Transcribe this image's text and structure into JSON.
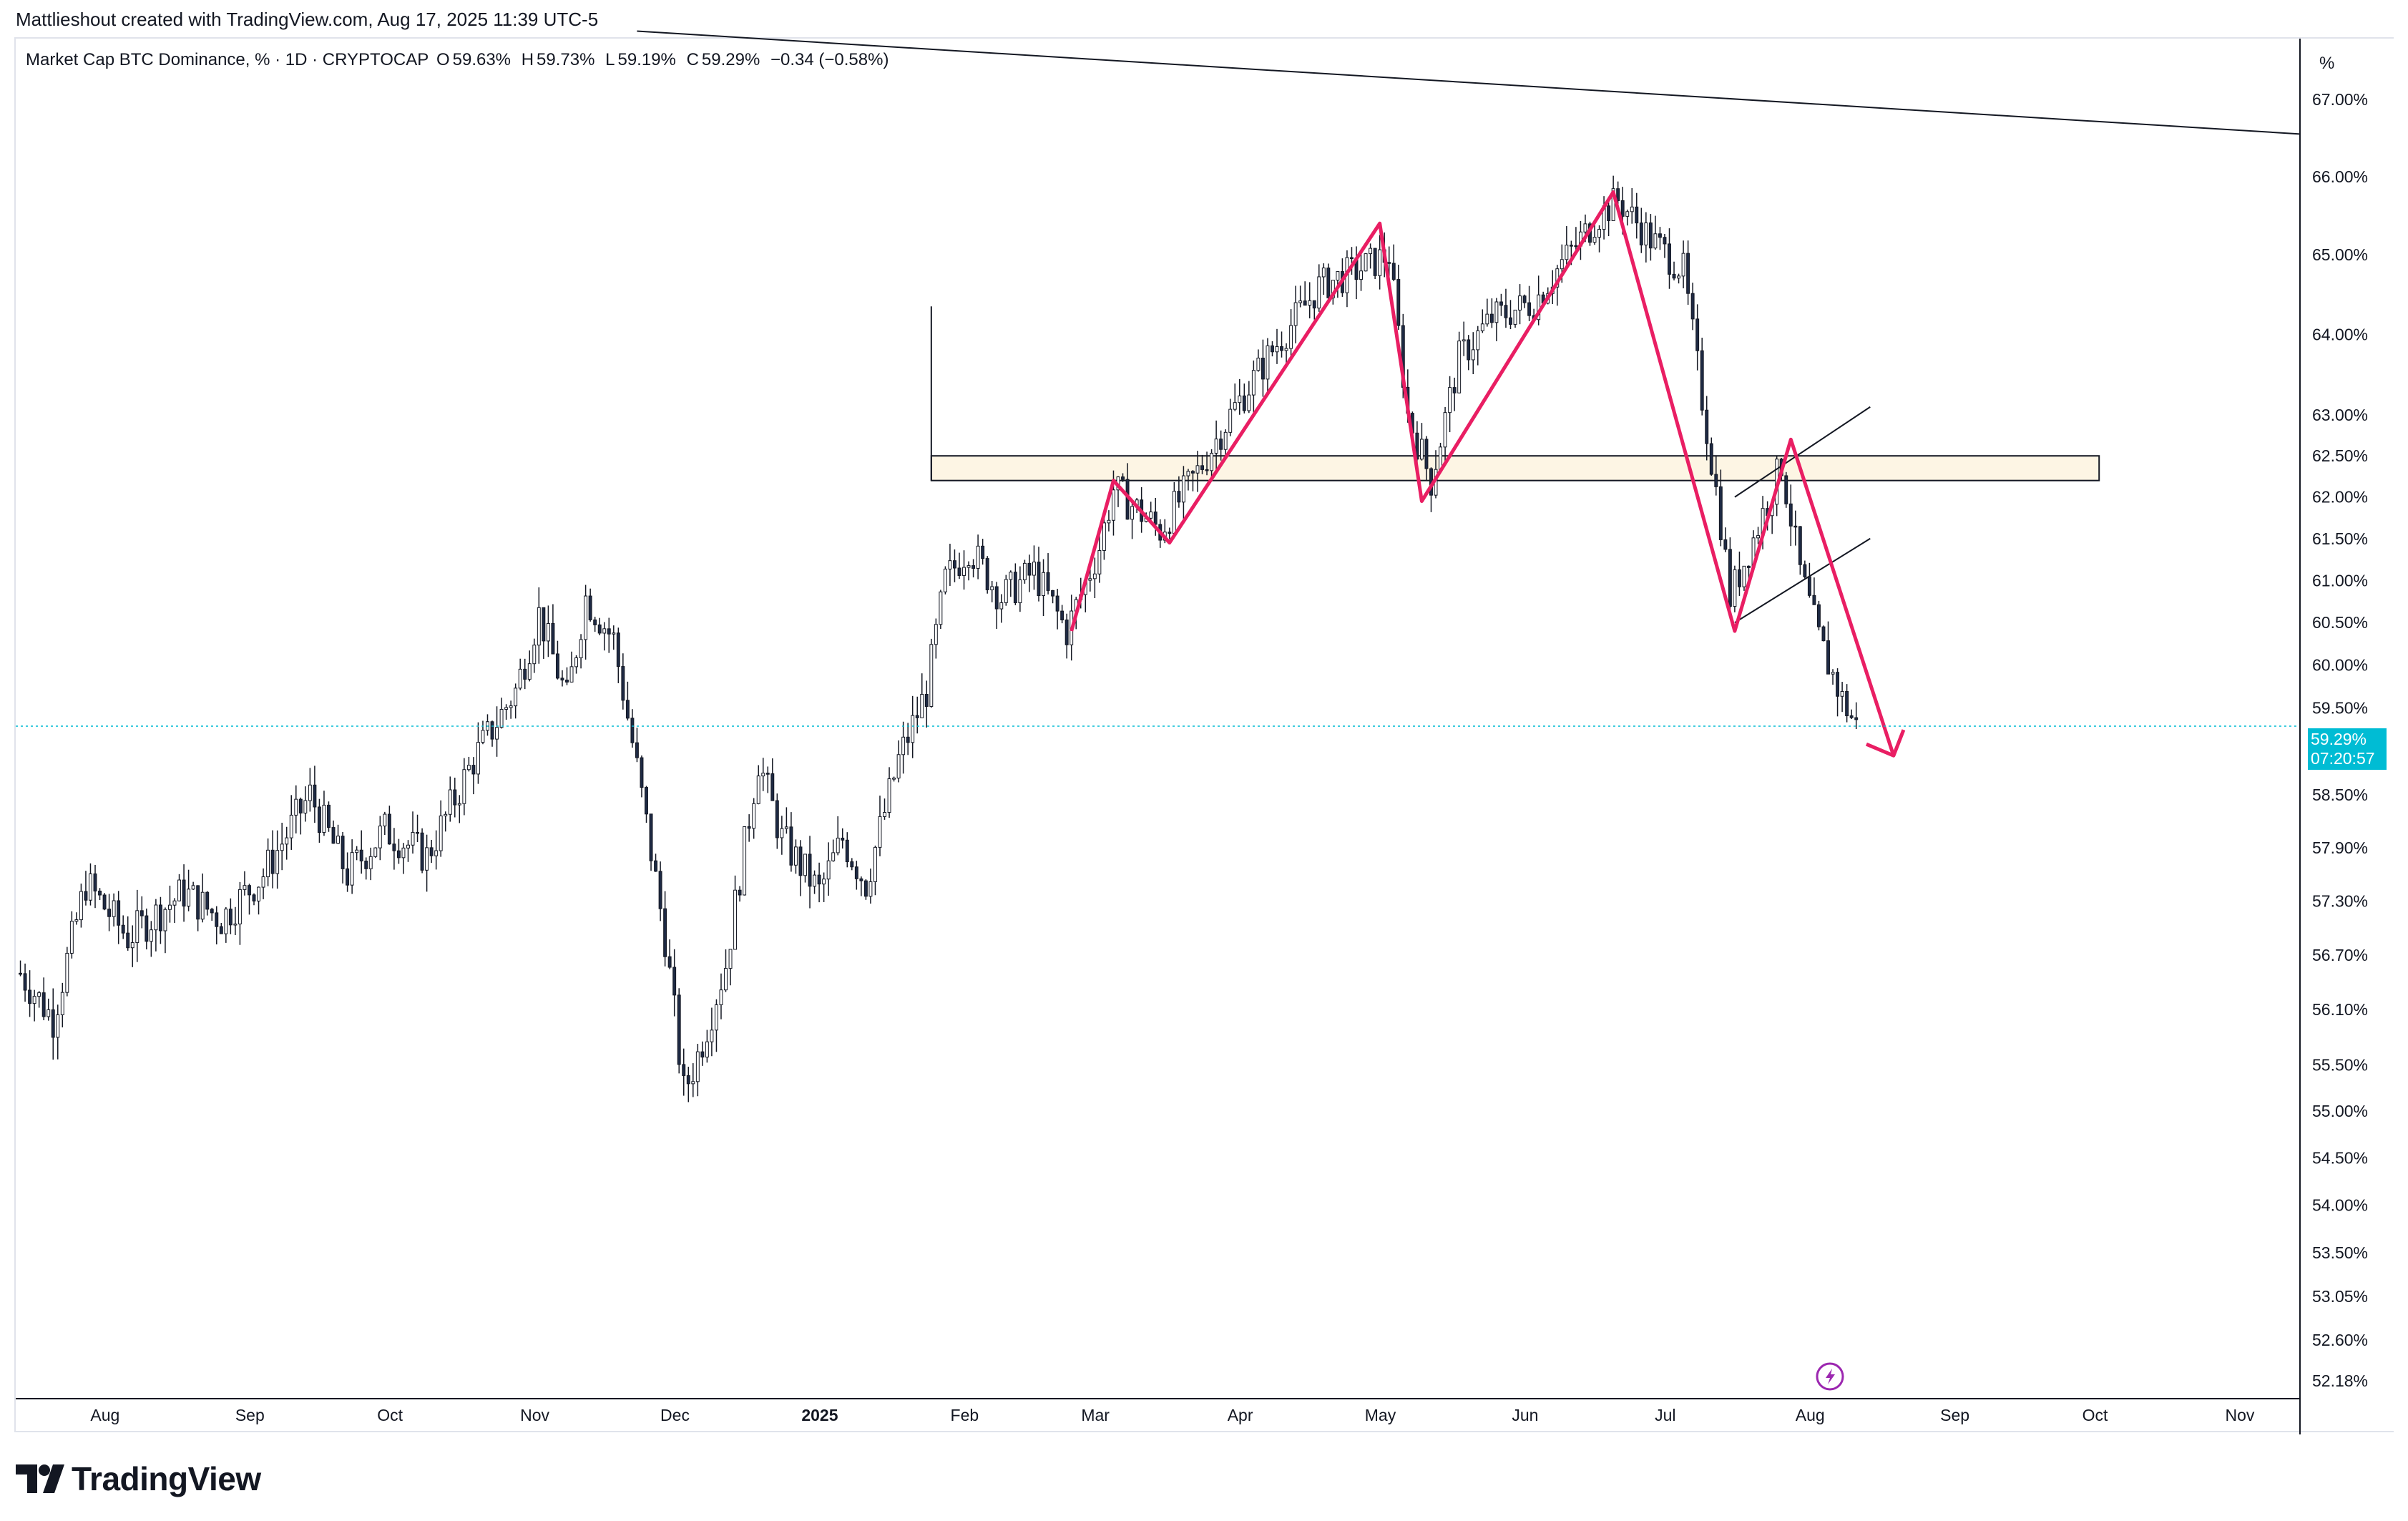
{
  "header": {
    "credit": "Mattlieshout created with TradingView.com, Aug 17, 2025 11:39 UTC-5"
  },
  "series_info": {
    "symbol": "Market Cap BTC Dominance, % · 1D · CRYPTOCAP",
    "open_label": "O",
    "open": "59.63%",
    "high_label": "H",
    "high": "59.73%",
    "low_label": "L",
    "low": "59.19%",
    "close_label": "C",
    "close": "59.29%",
    "change": "−0.34 (−0.58%)"
  },
  "price_axis": {
    "unit_label": "%",
    "current_price": "59.29%",
    "countdown": "07:20:57"
  },
  "brand": {
    "name": "TradingView"
  },
  "colors": {
    "candle_up": "#ffffff",
    "candle_down": "#1e2a44",
    "pattern": "#e91e63",
    "zone_fill": "#fdf5e4",
    "current_price": "#00bcd4",
    "spark_icon": "#9c27b0"
  },
  "chart_data": {
    "type": "candlestick",
    "title": "Market Cap BTC Dominance, % · 1D · CRYPTOCAP",
    "xlabel": "",
    "ylabel": "%",
    "x_ticks": [
      "Aug",
      "Sep",
      "Oct",
      "Nov",
      "Dec",
      "2025",
      "Feb",
      "Mar",
      "Apr",
      "May",
      "Jun",
      "Jul",
      "Aug",
      "Sep",
      "Oct",
      "Nov"
    ],
    "y_ticks": [
      "67.00%",
      "66.00%",
      "65.00%",
      "64.00%",
      "63.00%",
      "62.50%",
      "62.00%",
      "61.50%",
      "61.00%",
      "60.50%",
      "60.00%",
      "59.50%",
      "58.50%",
      "57.90%",
      "57.30%",
      "56.70%",
      "56.10%",
      "55.50%",
      "55.00%",
      "54.50%",
      "54.00%",
      "53.50%",
      "53.05%",
      "52.60%",
      "52.18%"
    ],
    "y_range": [
      52.0,
      67.8
    ],
    "y_scale": "log",
    "x_range": [
      "2024-07-19",
      "2025-11-20"
    ],
    "grid": false,
    "close_path": [
      [
        "2024-07-20",
        56.5
      ],
      [
        "2024-07-27",
        56.0
      ],
      [
        "2024-08-03",
        57.5
      ],
      [
        "2024-08-12",
        56.9
      ],
      [
        "2024-08-24",
        57.4
      ],
      [
        "2024-09-01",
        57.1
      ],
      [
        "2024-09-10",
        57.6
      ],
      [
        "2024-09-20",
        58.5
      ],
      [
        "2024-09-28",
        57.6
      ],
      [
        "2024-10-06",
        58.1
      ],
      [
        "2024-10-15",
        57.8
      ],
      [
        "2024-10-25",
        58.9
      ],
      [
        "2024-11-03",
        59.7
      ],
      [
        "2024-11-08",
        60.6
      ],
      [
        "2024-11-14",
        59.6
      ],
      [
        "2024-11-18",
        60.8
      ],
      [
        "2024-11-24",
        60.3
      ],
      [
        "2024-11-29",
        58.8
      ],
      [
        "2024-12-05",
        56.9
      ],
      [
        "2024-12-09",
        55.2
      ],
      [
        "2024-12-12",
        55.6
      ],
      [
        "2024-12-18",
        56.6
      ],
      [
        "2024-12-25",
        58.9
      ],
      [
        "2024-12-30",
        58.0
      ],
      [
        "2025-01-07",
        57.4
      ],
      [
        "2025-01-12",
        58.0
      ],
      [
        "2025-01-17",
        57.5
      ],
      [
        "2025-01-24",
        58.9
      ],
      [
        "2025-01-30",
        59.7
      ],
      [
        "2025-02-03",
        61.0
      ],
      [
        "2025-02-08",
        61.4
      ],
      [
        "2025-02-15",
        60.8
      ],
      [
        "2025-02-22",
        61.1
      ],
      [
        "2025-03-01",
        60.4
      ],
      [
        "2025-03-08",
        61.4
      ],
      [
        "2025-03-11",
        62.1
      ],
      [
        "2025-03-21",
        61.6
      ],
      [
        "2025-03-29",
        62.3
      ],
      [
        "2025-04-05",
        63.0
      ],
      [
        "2025-04-14",
        63.8
      ],
      [
        "2025-04-24",
        64.6
      ],
      [
        "2025-05-02",
        64.8
      ],
      [
        "2025-05-09",
        65.0
      ],
      [
        "2025-05-13",
        63.0
      ],
      [
        "2025-05-18",
        62.2
      ],
      [
        "2025-05-24",
        63.7
      ],
      [
        "2025-05-31",
        64.2
      ],
      [
        "2025-06-09",
        64.4
      ],
      [
        "2025-06-15",
        64.9
      ],
      [
        "2025-06-23",
        65.5
      ],
      [
        "2025-06-27",
        65.7
      ],
      [
        "2025-07-04",
        65.2
      ],
      [
        "2025-07-11",
        64.8
      ],
      [
        "2025-07-15",
        63.2
      ],
      [
        "2025-07-19",
        61.7
      ],
      [
        "2025-07-21",
        60.8
      ],
      [
        "2025-07-26",
        61.5
      ],
      [
        "2025-08-01",
        62.4
      ],
      [
        "2025-08-05",
        61.1
      ],
      [
        "2025-08-09",
        60.3
      ],
      [
        "2025-08-14",
        59.6
      ],
      [
        "2025-08-17",
        59.29
      ]
    ],
    "annotations": {
      "resistance_zone": {
        "from": "2025-01-31",
        "to": "2025-10-08",
        "low": 62.2,
        "high": 62.5
      },
      "vertical_marker": {
        "date": "2025-01-31",
        "high": 64.35,
        "low": 62.2
      },
      "long_trendline": {
        "from": [
          "2024-11-29",
          67.9
        ],
        "to": [
          "2025-11-20",
          66.55
        ]
      },
      "pattern_path": [
        [
          "2025-03-02",
          60.4
        ],
        [
          "2025-03-11",
          62.2
        ],
        [
          "2025-03-23",
          61.45
        ],
        [
          "2025-05-07",
          65.4
        ],
        [
          "2025-05-16",
          61.95
        ],
        [
          "2025-06-26",
          65.8
        ],
        [
          "2025-07-22",
          60.4
        ],
        [
          "2025-08-03",
          62.7
        ],
        [
          "2025-08-25",
          58.95
        ]
      ],
      "arrow_end": [
        "2025-08-25",
        58.95
      ],
      "rising_channel": {
        "upper": [
          [
            "2025-07-22",
            62.0
          ],
          [
            "2025-08-20",
            63.1
          ]
        ],
        "lower": [
          [
            "2025-07-22",
            60.5
          ],
          [
            "2025-08-20",
            61.5
          ]
        ]
      },
      "current_price": 59.29
    }
  }
}
